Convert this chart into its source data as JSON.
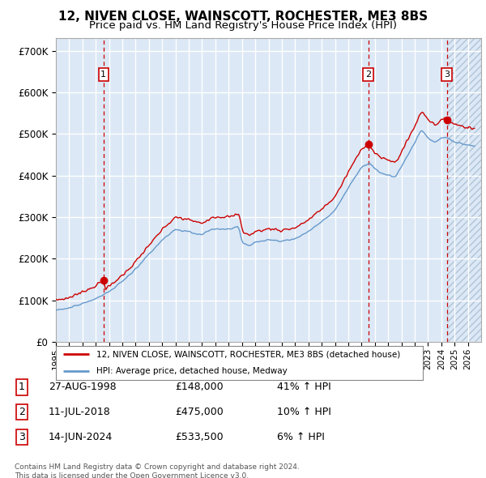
{
  "title1": "12, NIVEN CLOSE, WAINSCOTT, ROCHESTER, ME3 8BS",
  "title2": "Price paid vs. HM Land Registry's House Price Index (HPI)",
  "ylim": [
    0,
    730000
  ],
  "yticks": [
    0,
    100000,
    200000,
    300000,
    400000,
    500000,
    600000,
    700000
  ],
  "ytick_labels": [
    "£0",
    "£100K",
    "£200K",
    "£300K",
    "£400K",
    "£500K",
    "£600K",
    "£700K"
  ],
  "sale_prices": [
    148000,
    475000,
    533500
  ],
  "sale_labels": [
    "1",
    "2",
    "3"
  ],
  "vline_color": "#cc0000",
  "sale_line_color": "#cc0000",
  "hpi_line_color": "#6699cc",
  "background_color": "#dce8f5",
  "legend_label_sale": "12, NIVEN CLOSE, WAINSCOTT, ROCHESTER, ME3 8BS (detached house)",
  "legend_label_hpi": "HPI: Average price, detached house, Medway",
  "table_rows": [
    [
      "1",
      "27-AUG-1998",
      "£148,000",
      "41% ↑ HPI"
    ],
    [
      "2",
      "11-JUL-2018",
      "£475,000",
      "10% ↑ HPI"
    ],
    [
      "3",
      "14-JUN-2024",
      "£533,500",
      "6% ↑ HPI"
    ]
  ],
  "footer_text": "Contains HM Land Registry data © Crown copyright and database right 2024.\nThis data is licensed under the Open Government Licence v3.0.",
  "title_fontsize": 11,
  "subtitle_fontsize": 9.5
}
